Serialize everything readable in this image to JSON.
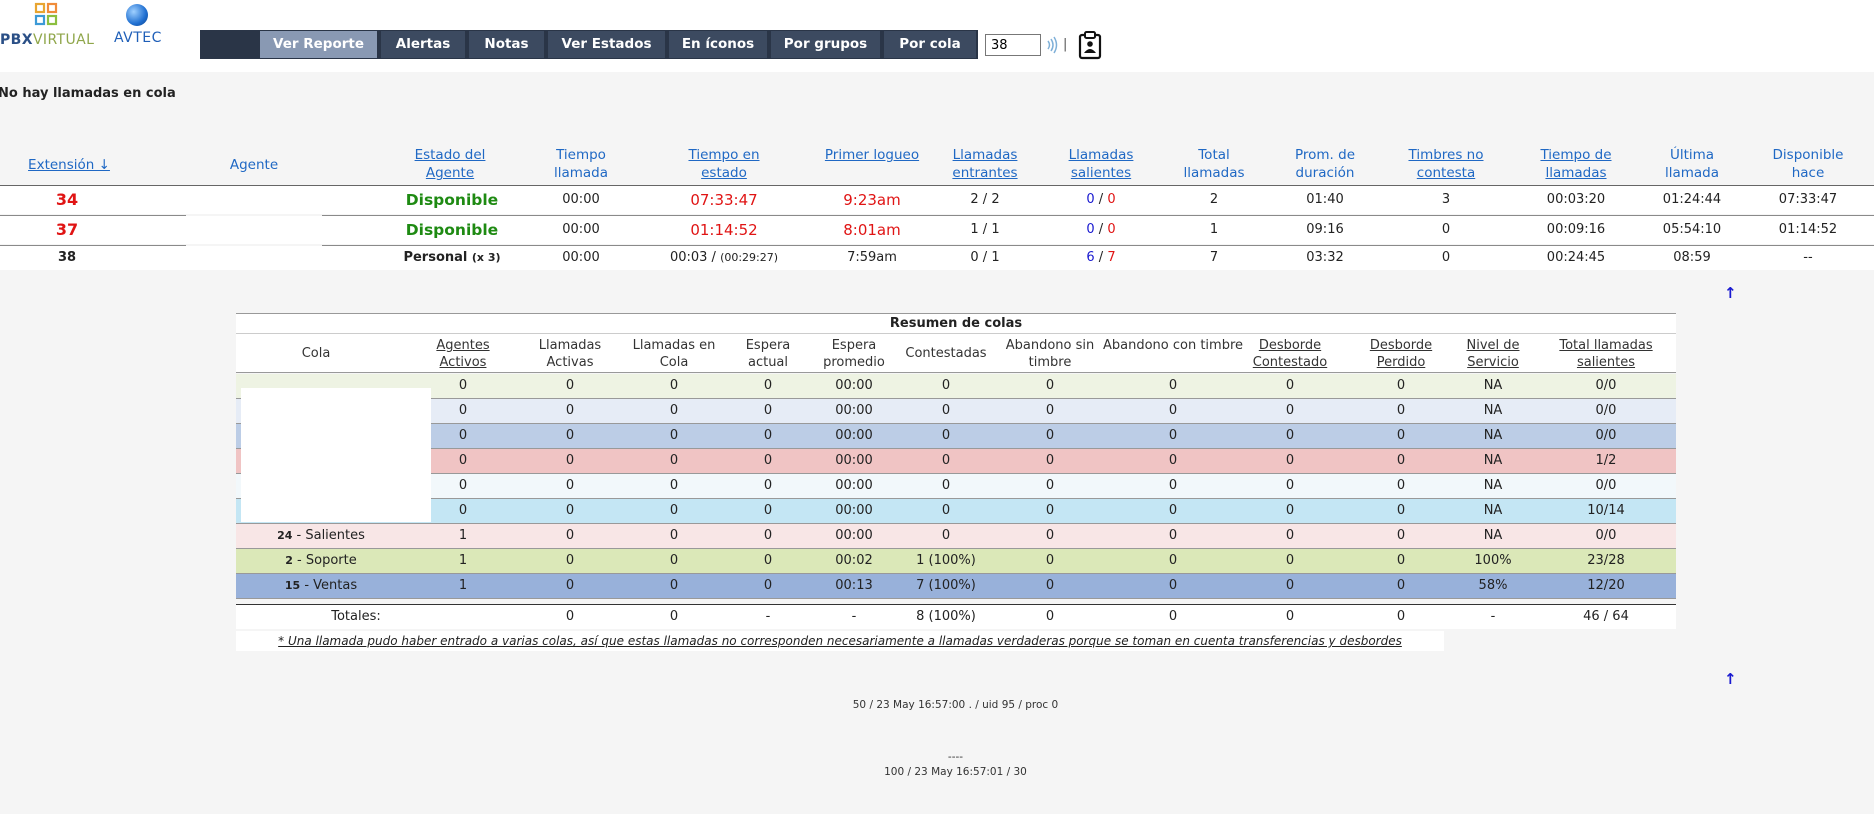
{
  "header": {
    "logo_pbx_part1": "PBX",
    "logo_pbx_part2": "VIRTUAL",
    "logo_avtec": "AVTEC",
    "nav": [
      "Ver Reporte",
      "Alertas",
      "Notas",
      "Ver Estados",
      "En íconos",
      "Por grupos",
      "Por cola"
    ],
    "nav_active": "Ver Reporte",
    "extension_input": "38",
    "separator": "|",
    "icons": [
      "wave-icon",
      "clipboard-icon"
    ]
  },
  "queue_message": "No hay llamadas en cola",
  "agents": {
    "headers": {
      "extension": "Extensión ↓",
      "agente": "Agente",
      "estado": "Estado del Agente",
      "tiempo_llamada": "Tiempo llamada",
      "tiempo_estado": "Tiempo en estado",
      "primer_logueo": "Primer logueo",
      "entrantes": "Llamadas entrantes",
      "salientes": "Llamadas salientes",
      "total": "Total llamadas",
      "prom": "Prom. de duración",
      "timbres": "Timbres no contesta",
      "tiempo_llamadas": "Tiempo de llamadas",
      "ultima": "Última llamada",
      "disponible": "Disponible hace"
    },
    "rows": [
      {
        "ext": "34",
        "estado": "Disponible",
        "tiempo_llamada": "00:00",
        "tiempo_estado": "07:33:47",
        "primer_logueo": "9:23am",
        "in_a": "2",
        "in_b": "2",
        "out_a": "0",
        "out_b": "0",
        "total": "2",
        "prom": "01:40",
        "timbres": "3",
        "tiempo_llamadas": "00:03:20",
        "ultima": "01:24:44",
        "disponible": "07:33:47"
      },
      {
        "ext": "37",
        "estado": "Disponible",
        "tiempo_llamada": "00:00",
        "tiempo_estado": "01:14:52",
        "primer_logueo": "8:01am",
        "in_a": "1",
        "in_b": "1",
        "out_a": "0",
        "out_b": "0",
        "total": "1",
        "prom": "09:16",
        "timbres": "0",
        "tiempo_llamadas": "00:09:16",
        "ultima": "05:54:10",
        "disponible": "01:14:52"
      },
      {
        "ext": "38",
        "estado": "Personal",
        "estado_extra": "(x 3)",
        "tiempo_llamada": "00:00",
        "tiempo_estado": "00:03 /",
        "tiempo_estado_extra": "(00:29:27)",
        "primer_logueo": "7:59am",
        "in_a": "0",
        "in_b": "1",
        "out_a": "6",
        "out_b": "7",
        "total": "7",
        "prom": "03:32",
        "timbres": "0",
        "tiempo_llamadas": "00:24:45",
        "ultima": "08:59",
        "disponible": "--"
      }
    ]
  },
  "queues": {
    "title": "Resumen de colas",
    "headers": [
      "Cola",
      "Agentes Activos",
      "Llamadas Activas",
      "Llamadas en Cola",
      "Espera actual",
      "Espera promedio",
      "Contestadas",
      "Abandono sin timbre",
      "Abandono con timbre",
      "Desborde Contestado",
      "Desborde Perdido",
      "Nivel de Servicio",
      "Total llamadas salientes"
    ],
    "rows": [
      {
        "num": "",
        "name": "",
        "color": "#eef3e3",
        "vals": [
          "0",
          "0",
          "0",
          "0",
          "00:00",
          "0",
          "0",
          "0",
          "0",
          "0",
          "NA",
          "0/0"
        ]
      },
      {
        "num": "",
        "name": "",
        "color": "#e6ecf6",
        "vals": [
          "0",
          "0",
          "0",
          "0",
          "00:00",
          "0",
          "0",
          "0",
          "0",
          "0",
          "NA",
          "0/0"
        ]
      },
      {
        "num": "",
        "name": "",
        "color": "#bccde6",
        "vals": [
          "0",
          "0",
          "0",
          "0",
          "00:00",
          "0",
          "0",
          "0",
          "0",
          "0",
          "NA",
          "0/0"
        ]
      },
      {
        "num": "",
        "name": "",
        "color": "#f0c4c4",
        "vals": [
          "0",
          "0",
          "0",
          "0",
          "00:00",
          "0",
          "0",
          "0",
          "0",
          "0",
          "NA",
          "1/2"
        ]
      },
      {
        "num": "",
        "name": "",
        "color": "#f2f8fb",
        "vals": [
          "0",
          "0",
          "0",
          "0",
          "00:00",
          "0",
          "0",
          "0",
          "0",
          "0",
          "NA",
          "0/0"
        ]
      },
      {
        "num": "",
        "name": "",
        "color": "#c4e6f4",
        "vals": [
          "0",
          "0",
          "0",
          "0",
          "00:00",
          "0",
          "0",
          "0",
          "0",
          "0",
          "NA",
          "10/14"
        ]
      },
      {
        "num": "24",
        "name": "Salientes",
        "color": "#f8e6e6",
        "vals": [
          "1",
          "0",
          "0",
          "0",
          "00:00",
          "0",
          "0",
          "0",
          "0",
          "0",
          "NA",
          "0/0"
        ]
      },
      {
        "num": "2",
        "name": "Soporte",
        "color": "#dbe8b8",
        "vals": [
          "1",
          "0",
          "0",
          "0",
          "00:02",
          "1 (100%)",
          "0",
          "0",
          "0",
          "0",
          "100%",
          "23/28"
        ]
      },
      {
        "num": "15",
        "name": "Ventas",
        "color": "#98b1da",
        "vals": [
          "1",
          "0",
          "0",
          "0",
          "00:13",
          "7 (100%)",
          "0",
          "0",
          "0",
          "0",
          "58%",
          "12/20"
        ]
      }
    ],
    "totals": {
      "label": "Totales:",
      "vals": [
        "0",
        "0",
        "-",
        "-",
        "8 (100%)",
        "0",
        "0",
        "0",
        "0",
        "-",
        "46 / 64"
      ]
    },
    "note": "* Una llamada pudo haber entrado a varias colas, así que estas llamadas no corresponden necesariamente a llamadas verdaderas porque se toman en cuenta transferencias y desbordes"
  },
  "footer": {
    "line1": "50 / 23 May 16:57:00 . / uid 95 / proc 0",
    "line2": "----",
    "line3": "100 / 23 May 16:57:01 / 30"
  }
}
